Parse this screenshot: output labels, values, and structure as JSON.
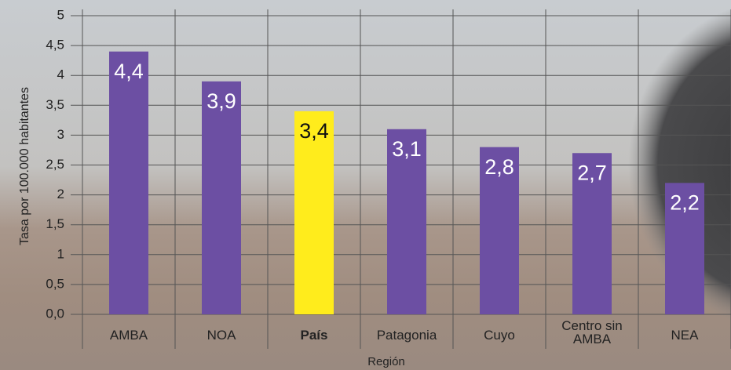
{
  "chart_data": {
    "type": "bar",
    "y_axis_label": "Tasa por 100.000 habitantes",
    "x_axis_label": "Región",
    "categories": [
      "AMBA",
      "NOA",
      "País",
      "Patagonia",
      "Cuyo",
      "Centro sin AMBA",
      "NEA"
    ],
    "values": [
      4.4,
      3.9,
      3.4,
      3.1,
      2.8,
      2.7,
      2.2
    ],
    "value_labels": [
      "4,4",
      "3,9",
      "3,4",
      "3,1",
      "2,8",
      "2,7",
      "2,2"
    ],
    "colors": [
      "#6c4fa3",
      "#6c4fa3",
      "#ffec1c",
      "#6c4fa3",
      "#6c4fa3",
      "#6c4fa3",
      "#6c4fa3"
    ],
    "value_label_colors": [
      "#ffffff",
      "#ffffff",
      "#111111",
      "#ffffff",
      "#ffffff",
      "#ffffff",
      "#ffffff"
    ],
    "bold_category": "País",
    "ylim": [
      0,
      5
    ],
    "yticks": [
      {
        "value": 0,
        "label": "0,0"
      },
      {
        "value": 0.5,
        "label": "0,5"
      },
      1,
      {
        "value": 1.5,
        "label": "1,5"
      },
      2,
      {
        "value": 2.5,
        "label": "2,5"
      },
      3,
      {
        "value": 3.5,
        "label": "3,5"
      },
      4,
      {
        "value": 4.5,
        "label": "4,5"
      },
      5
    ],
    "grid": true
  }
}
